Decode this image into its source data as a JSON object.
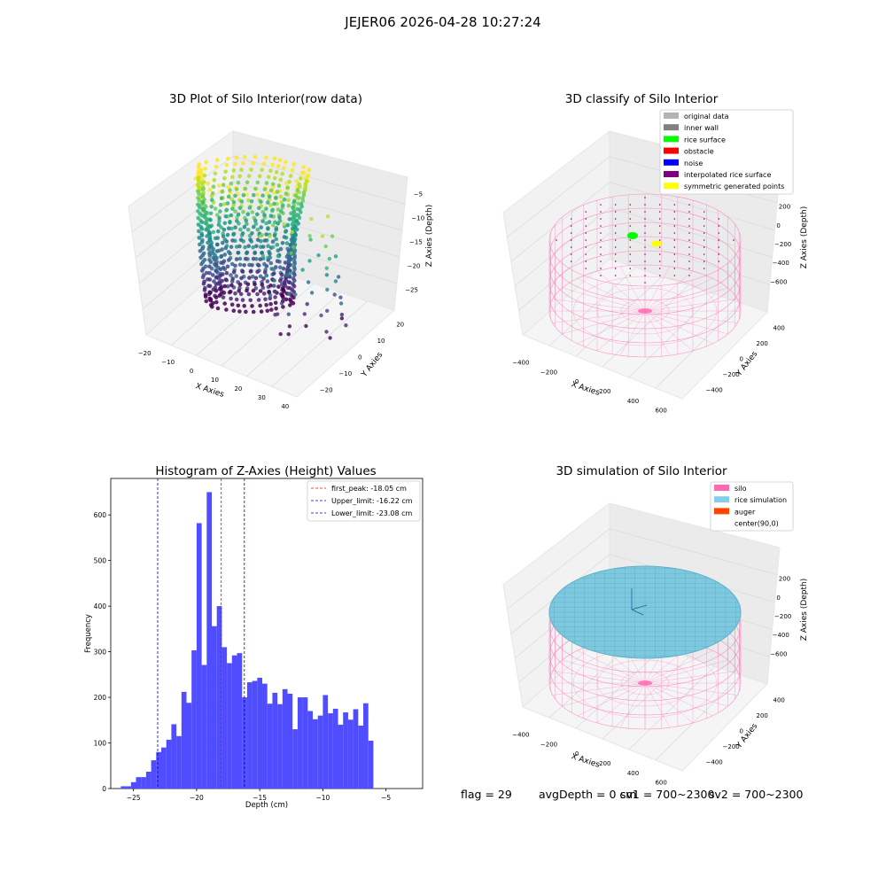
{
  "suptitle": "JEJER06 2026-04-28 10:27:24",
  "footer": {
    "flag": "flag = 29",
    "avg_depth": "avgDepth = 0 cm",
    "sv1": "sv1 = 700~2300",
    "sv2": "sv2 = 700~2300"
  },
  "colors": {
    "hist_bar": "#4f4dff",
    "peak_line": "#ff0000",
    "limit_line": "#0000cc",
    "silo_wire": "#ff69b4",
    "rice_surface": "#7ec9df",
    "pane": "#f2f2f2"
  },
  "chart_data": [
    {
      "type": "scatter3d",
      "title": "3D Plot of Silo Interior(row data)",
      "xlabel": "X Axies",
      "ylabel": "Y Axies",
      "zlabel": "Z Axies (Depth)",
      "xticks": [
        "−20",
        "−10",
        "0",
        "10",
        "20",
        "30",
        "40"
      ],
      "yticks": [
        "−20",
        "−10",
        "0",
        "10",
        "20"
      ],
      "zticks": [
        "−5",
        "−10",
        "−15",
        "−20",
        "−25"
      ],
      "colormap": "viridis",
      "xlim": [
        -25,
        42
      ],
      "ylim": [
        -25,
        22
      ],
      "zlim": [
        -27,
        -3
      ]
    },
    {
      "type": "scatter3d",
      "title": "3D classify of Silo Interior",
      "xlabel": "X Axies",
      "ylabel": "Y Axies",
      "zlabel": "Z Axies (Depth)",
      "xticks": [
        "−400",
        "−200",
        "0",
        "200",
        "400",
        "600"
      ],
      "yticks": [
        "−400",
        "−200",
        "0",
        "200",
        "400"
      ],
      "zticks": [
        "200",
        "0",
        "−200",
        "−400",
        "−600"
      ],
      "legend_position": "top-right",
      "legend": [
        {
          "label": "original data",
          "color": "#b3b3b3"
        },
        {
          "label": "inner wall",
          "color": "#808080"
        },
        {
          "label": "rice surface",
          "color": "#00ff00"
        },
        {
          "label": "obstacle",
          "color": "#ff0000"
        },
        {
          "label": "noise",
          "color": "#0000ff"
        },
        {
          "label": "interpolated rice surface",
          "color": "#800080"
        },
        {
          "label": "symmetric generated points",
          "color": "#ffff00"
        }
      ]
    },
    {
      "type": "bar",
      "title": "Histogram of Z-Axies (Height) Values",
      "xlabel": "Depth (cm)",
      "ylabel": "Frequency",
      "xlim": [
        -26.8,
        -2.1
      ],
      "ylim": [
        0,
        680
      ],
      "xticks": [
        -25,
        -20,
        -15,
        -10,
        -5
      ],
      "yticks": [
        0,
        100,
        200,
        300,
        400,
        500,
        600
      ],
      "bin_start": -26.0,
      "bin_width": 0.4,
      "values": [
        5,
        5,
        14,
        25,
        25,
        37,
        62,
        80,
        90,
        107,
        141,
        115,
        212,
        188,
        303,
        582,
        271,
        650,
        356,
        400,
        310,
        275,
        292,
        297,
        200,
        233,
        236,
        243,
        230,
        186,
        210,
        185,
        218,
        208,
        130,
        200,
        200,
        170,
        152,
        160,
        205,
        165,
        175,
        140,
        167,
        151,
        174,
        138,
        187,
        105
      ],
      "vlines": [
        {
          "label": "first_peak: -18.05 cm",
          "x": -18.05,
          "color": "#ff0000"
        },
        {
          "label": "Upper_limit: -16.22 cm",
          "x": -16.22,
          "color": "#0000cc"
        },
        {
          "label": "Lower_limit: -23.08 cm",
          "x": -23.08,
          "color": "#0000cc"
        }
      ],
      "legend_position": "top-right"
    },
    {
      "type": "surface3d",
      "title": "3D simulation of Silo Interior",
      "xlabel": "X Axies",
      "ylabel": "Y Axies",
      "zlabel": "Z Axies (Depth)",
      "xticks": [
        "−400",
        "−200",
        "0",
        "200",
        "400",
        "600"
      ],
      "yticks": [
        "−400",
        "−200",
        "0",
        "200",
        "400"
      ],
      "zticks": [
        "200",
        "0",
        "−200",
        "−400",
        "−600"
      ],
      "legend_position": "top-right",
      "legend": [
        {
          "label": "silo",
          "color": "#ff69b4"
        },
        {
          "label": "rice simulation",
          "color": "#87ceeb"
        },
        {
          "label": "auger",
          "color": "#ff4500"
        },
        {
          "label": "center(90,0)",
          "color": ""
        }
      ]
    }
  ]
}
